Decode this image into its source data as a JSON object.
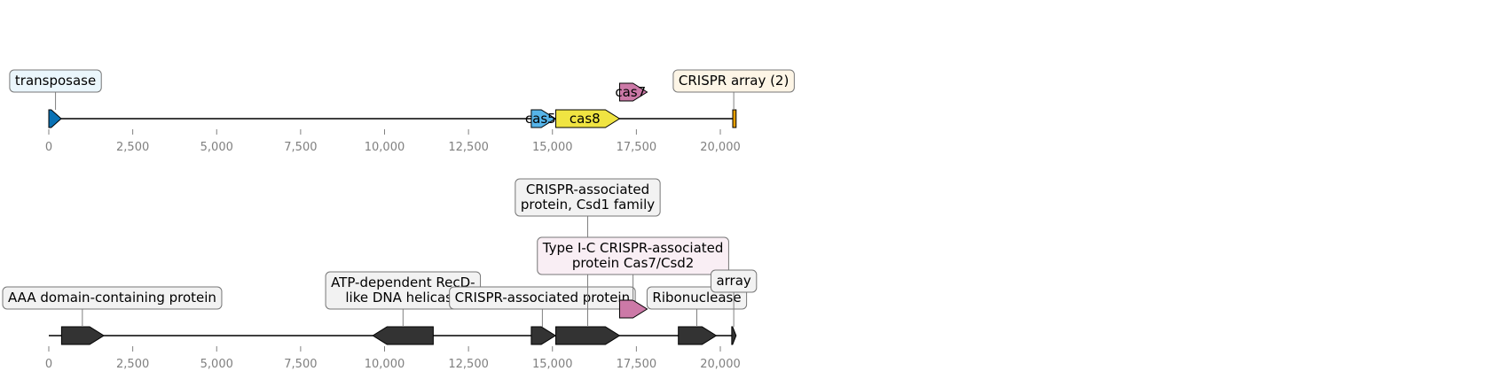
{
  "colors": {
    "transposase": "#0a72b5",
    "cas5": "#56b4e9",
    "cas8": "#f0e442",
    "cas7": "#cc79a7",
    "crispr": "#e69f00",
    "gene_dark": "#333333",
    "axis": "#808080",
    "box_transposase": "#eaf6fc",
    "box_crispr": "#fdf5e6",
    "box_grey": "#f2f2f2",
    "box_pink": "#f9eef4"
  },
  "tracks": [
    {
      "ticks": [
        "0",
        "2,500",
        "5,000",
        "7,500",
        "10,000",
        "12,500",
        "15,000",
        "17,500",
        "20,000"
      ],
      "features": [
        {
          "name": "transposase-gene",
          "start": 0,
          "end": 370,
          "strand": 1,
          "color": "transposase",
          "row": 0,
          "label": "",
          "callout": [
            "transposase"
          ],
          "callout_bg": "box_transposase",
          "callout_level": 1,
          "callout_pos": 200
        },
        {
          "name": "cas5-gene",
          "start": 14370,
          "end": 15090,
          "strand": 1,
          "color": "cas5",
          "row": 0,
          "label": "cas5"
        },
        {
          "name": "cas8-gene",
          "start": 15100,
          "end": 17000,
          "strand": 1,
          "color": "cas8",
          "row": 0,
          "label": "cas8"
        },
        {
          "name": "cas7-gene",
          "start": 17000,
          "end": 17820,
          "strand": 1,
          "color": "cas7",
          "row": 1,
          "label": "cas7"
        },
        {
          "name": "crispr-array",
          "start": 20370,
          "end": 20470,
          "strand": 0,
          "color": "crispr",
          "row": 0,
          "label": "",
          "callout": [
            "CRISPR array (2)"
          ],
          "callout_bg": "box_crispr",
          "callout_level": 1,
          "callout_pos": 20400
        }
      ]
    },
    {
      "ticks": [
        "0",
        "2,500",
        "5,000",
        "7,500",
        "10,000",
        "12,500",
        "15,000",
        "17,500",
        "20,000"
      ],
      "features": [
        {
          "name": "aaa-domain-gene",
          "start": 380,
          "end": 1640,
          "strand": 1,
          "color": "gene_dark",
          "row": 0,
          "label": "",
          "callout": [
            "AAA domain-containing protein"
          ],
          "callout_bg": "box_grey",
          "callout_level": 1,
          "callout_pos": 1000
        },
        {
          "name": "recd-helicase-gene",
          "start": 9650,
          "end": 11450,
          "strand": -1,
          "color": "gene_dark",
          "row": 0,
          "label": "",
          "callout": [
            "ATP-dependent RecD-",
            "like DNA helicase"
          ],
          "callout_bg": "box_grey",
          "callout_level": 1,
          "callout_pos": 10550
        },
        {
          "name": "crispr-associated-gene",
          "start": 14370,
          "end": 15090,
          "strand": 1,
          "color": "gene_dark",
          "row": 0,
          "label": "",
          "callout": [
            "CRISPR-associated protein"
          ],
          "callout_bg": "box_grey",
          "callout_level": 1,
          "callout_pos": 14700
        },
        {
          "name": "csd1-gene",
          "start": 15100,
          "end": 17000,
          "strand": 1,
          "color": "gene_dark",
          "row": 0,
          "label": "",
          "callout": [
            "CRISPR-associated",
            "protein, Csd1 family"
          ],
          "callout_bg": "box_grey",
          "callout_level": 3,
          "callout_pos": 16050
        },
        {
          "name": "cas7-csd2-gene",
          "start": 17000,
          "end": 17820,
          "strand": 1,
          "color": "cas7",
          "row": 1,
          "label": "",
          "callout": [
            "Type I-C CRISPR-associated",
            "protein Cas7/Csd2"
          ],
          "callout_bg": "box_pink",
          "callout_level": 2,
          "callout_pos": 17400
        },
        {
          "name": "ribonuclease-gene",
          "start": 18750,
          "end": 19880,
          "strand": 1,
          "color": "gene_dark",
          "row": 0,
          "label": "",
          "callout": [
            "Ribonuclease"
          ],
          "callout_bg": "box_grey",
          "callout_level": 1,
          "callout_pos": 19300
        },
        {
          "name": "array-feature",
          "start": 20340,
          "end": 20470,
          "strand": 1,
          "color": "gene_dark",
          "row": 0,
          "label": "",
          "callout": [
            "array"
          ],
          "callout_bg": "box_grey",
          "callout_level": 1.6,
          "callout_pos": 20400
        }
      ]
    }
  ]
}
